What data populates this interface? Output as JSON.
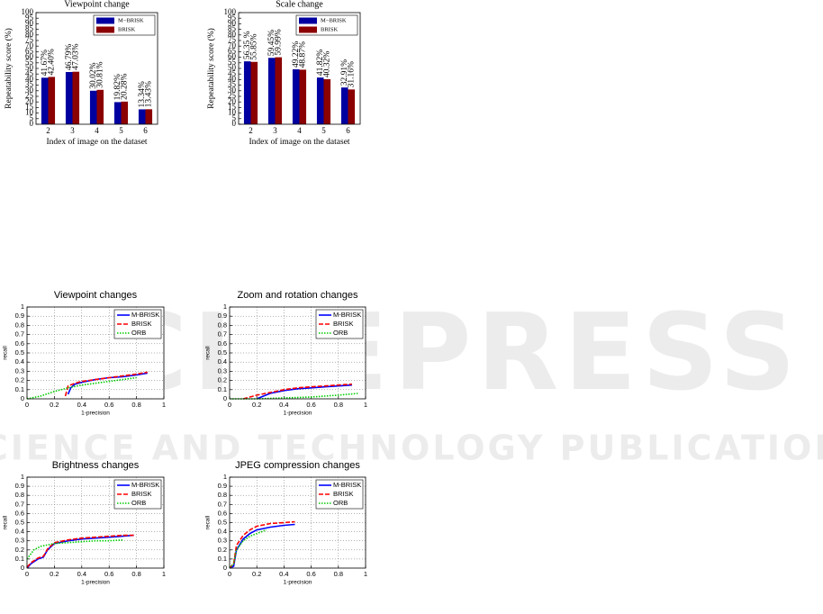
{
  "watermark": {
    "title": "SCITEPRESS",
    "subtitle": "SCIENCE AND TECHNOLOGY PUBLICATIONS"
  },
  "chart_data": [
    {
      "type": "bar",
      "title": "Viewpoint change",
      "x_label": "Index of image on the dataset",
      "y_label": "Repeatability score (%)",
      "categories": [
        "2",
        "3",
        "4",
        "5",
        "6"
      ],
      "series": [
        {
          "name": "M−BRISK",
          "color": "#0000a0",
          "values": [
            41.67,
            46.79,
            30.02,
            19.82,
            13.34
          ],
          "value_labels": [
            "41.67%",
            "46.79%",
            "30.02%",
            "19.82%",
            "13.34%"
          ]
        },
        {
          "name": "BRISK",
          "color": "#8b0000",
          "values": [
            42.4,
            47.03,
            30.81,
            20.28,
            13.43
          ],
          "value_labels": [
            "42.40%",
            "47.03%",
            "30.81%",
            "20.28%",
            "13.43%"
          ]
        }
      ],
      "ylim": [
        0,
        100
      ],
      "yticks": [
        0,
        5,
        10,
        15,
        20,
        25,
        30,
        35,
        40,
        45,
        50,
        55,
        60,
        65,
        70,
        75,
        80,
        85,
        90,
        95,
        100
      ],
      "grid": false,
      "legend": "upper right"
    },
    {
      "type": "bar",
      "title": "Scale change",
      "x_label": "Index of image on the dataset",
      "y_label": "Repeatability score (%)",
      "categories": [
        "2",
        "3",
        "4",
        "5",
        "6"
      ],
      "series": [
        {
          "name": "M−BRISK",
          "color": "#0000a0",
          "values": [
            56.35,
            59.45,
            49.22,
            41.82,
            32.91
          ],
          "value_labels": [
            "56.35 %",
            "59.45%",
            "49.22%",
            "41.82%",
            "32.91%"
          ]
        },
        {
          "name": "BRISK",
          "color": "#8b0000",
          "values": [
            55.85,
            59.99,
            48.87,
            40.32,
            31.16
          ],
          "value_labels": [
            "55.85%",
            "59.99%",
            "48.87%",
            "40.32%",
            "31.16%"
          ]
        }
      ],
      "ylim": [
        0,
        100
      ],
      "yticks": [
        0,
        5,
        10,
        15,
        20,
        25,
        30,
        35,
        40,
        45,
        50,
        55,
        60,
        65,
        70,
        75,
        80,
        85,
        90,
        95,
        100
      ],
      "grid": false,
      "legend": "upper right"
    },
    {
      "type": "line",
      "title": "Viewpoint changes",
      "x_label": "1-precision",
      "y_label": "recall",
      "series": [
        {
          "name": "M-BRISK",
          "color": "#0000ff",
          "style": "solid",
          "x": [
            0.3,
            0.32,
            0.35,
            0.4,
            0.5,
            0.6,
            0.7,
            0.8,
            0.88
          ],
          "values": [
            0.05,
            0.12,
            0.16,
            0.18,
            0.21,
            0.23,
            0.24,
            0.26,
            0.28
          ]
        },
        {
          "name": "BRISK",
          "color": "#ff0000",
          "style": "dashed",
          "x": [
            0.28,
            0.3,
            0.35,
            0.4,
            0.5,
            0.6,
            0.7,
            0.8,
            0.88
          ],
          "values": [
            0.03,
            0.14,
            0.17,
            0.19,
            0.21,
            0.23,
            0.25,
            0.27,
            0.29
          ]
        },
        {
          "name": "ORB",
          "color": "#00cc00",
          "style": "dotted",
          "x": [
            0,
            0.1,
            0.2,
            0.3,
            0.4,
            0.5,
            0.6,
            0.7,
            0.8
          ],
          "values": [
            0,
            0.03,
            0.08,
            0.12,
            0.15,
            0.17,
            0.19,
            0.21,
            0.23
          ]
        }
      ],
      "xlim": [
        0,
        1
      ],
      "ylim": [
        0,
        1
      ],
      "xticks": [
        0,
        0.2,
        0.4,
        0.6,
        0.8,
        1
      ],
      "yticks": [
        0,
        0.1,
        0.2,
        0.3,
        0.4,
        0.5,
        0.6,
        0.7,
        0.8,
        0.9,
        1
      ],
      "grid": true,
      "legend": "upper right"
    },
    {
      "type": "line",
      "title": "Zoom and rotation changes",
      "x_label": "1-precision",
      "y_label": "recall",
      "series": [
        {
          "name": "M-BRISK",
          "color": "#0000ff",
          "style": "solid",
          "x": [
            0.2,
            0.25,
            0.3,
            0.4,
            0.5,
            0.6,
            0.7,
            0.8,
            0.9
          ],
          "values": [
            0,
            0.03,
            0.06,
            0.09,
            0.11,
            0.12,
            0.13,
            0.14,
            0.15
          ]
        },
        {
          "name": "BRISK",
          "color": "#ff0000",
          "style": "dashed",
          "x": [
            0.1,
            0.15,
            0.2,
            0.3,
            0.4,
            0.5,
            0.6,
            0.7,
            0.8,
            0.9
          ],
          "values": [
            0,
            0.02,
            0.04,
            0.07,
            0.1,
            0.12,
            0.13,
            0.14,
            0.15,
            0.16
          ]
        },
        {
          "name": "ORB",
          "color": "#00cc00",
          "style": "dotted",
          "x": [
            0,
            0.2,
            0.4,
            0.6,
            0.8,
            0.95
          ],
          "values": [
            0,
            0,
            0.01,
            0.02,
            0.04,
            0.06
          ]
        }
      ],
      "xlim": [
        0,
        1
      ],
      "ylim": [
        0,
        1
      ],
      "xticks": [
        0,
        0.2,
        0.4,
        0.6,
        0.8,
        1
      ],
      "yticks": [
        0,
        0.1,
        0.2,
        0.3,
        0.4,
        0.5,
        0.6,
        0.7,
        0.8,
        0.9,
        1
      ],
      "grid": true,
      "legend": "upper right"
    },
    {
      "type": "line",
      "title": "Brightness changes",
      "x_label": "1-precision",
      "y_label": "recall",
      "series": [
        {
          "name": "M-BRISK",
          "color": "#0000ff",
          "style": "solid",
          "x": [
            0,
            0.03,
            0.08,
            0.12,
            0.15,
            0.2,
            0.3,
            0.4,
            0.5,
            0.6,
            0.7,
            0.78
          ],
          "values": [
            0,
            0.05,
            0.1,
            0.12,
            0.2,
            0.27,
            0.3,
            0.32,
            0.33,
            0.34,
            0.35,
            0.36
          ]
        },
        {
          "name": "BRISK",
          "color": "#ff0000",
          "style": "dashed",
          "x": [
            0,
            0.03,
            0.08,
            0.12,
            0.15,
            0.2,
            0.3,
            0.4,
            0.5,
            0.6,
            0.7,
            0.78
          ],
          "values": [
            0.01,
            0.06,
            0.11,
            0.13,
            0.21,
            0.28,
            0.31,
            0.33,
            0.34,
            0.35,
            0.36,
            0.36
          ]
        },
        {
          "name": "ORB",
          "color": "#00cc00",
          "style": "dotted",
          "x": [
            0,
            0.05,
            0.1,
            0.2,
            0.3,
            0.4,
            0.5,
            0.6,
            0.7
          ],
          "values": [
            0.1,
            0.2,
            0.24,
            0.27,
            0.28,
            0.29,
            0.3,
            0.3,
            0.31
          ]
        }
      ],
      "xlim": [
        0,
        1
      ],
      "ylim": [
        0,
        1
      ],
      "xticks": [
        0,
        0.2,
        0.4,
        0.6,
        0.8,
        1
      ],
      "yticks": [
        0,
        0.1,
        0.2,
        0.3,
        0.4,
        0.5,
        0.6,
        0.7,
        0.8,
        0.9,
        1
      ],
      "grid": true,
      "legend": "upper right"
    },
    {
      "type": "line",
      "title": "JPEG compression changes",
      "x_label": "1-precision",
      "y_label": "recall",
      "series": [
        {
          "name": "M-BRISK",
          "color": "#0000ff",
          "style": "solid",
          "x": [
            0,
            0.03,
            0.05,
            0.1,
            0.15,
            0.2,
            0.3,
            0.4,
            0.48
          ],
          "values": [
            0,
            0.02,
            0.2,
            0.32,
            0.38,
            0.42,
            0.45,
            0.47,
            0.48
          ]
        },
        {
          "name": "BRISK",
          "color": "#ff0000",
          "style": "dashed",
          "x": [
            0,
            0.03,
            0.05,
            0.1,
            0.15,
            0.2,
            0.3,
            0.4,
            0.48
          ],
          "values": [
            0,
            0.05,
            0.25,
            0.36,
            0.42,
            0.46,
            0.49,
            0.5,
            0.51
          ]
        },
        {
          "name": "ORB",
          "color": "#00cc00",
          "style": "dotted",
          "x": [
            0,
            0.03,
            0.05,
            0.1,
            0.15,
            0.2,
            0.27
          ],
          "values": [
            0,
            0.05,
            0.2,
            0.3,
            0.35,
            0.38,
            0.42
          ]
        }
      ],
      "xlim": [
        0,
        1
      ],
      "ylim": [
        0,
        1
      ],
      "xticks": [
        0,
        0.2,
        0.4,
        0.6,
        0.8,
        1
      ],
      "yticks": [
        0,
        0.1,
        0.2,
        0.3,
        0.4,
        0.5,
        0.6,
        0.7,
        0.8,
        0.9,
        1
      ],
      "grid": true,
      "legend": "upper right"
    }
  ]
}
